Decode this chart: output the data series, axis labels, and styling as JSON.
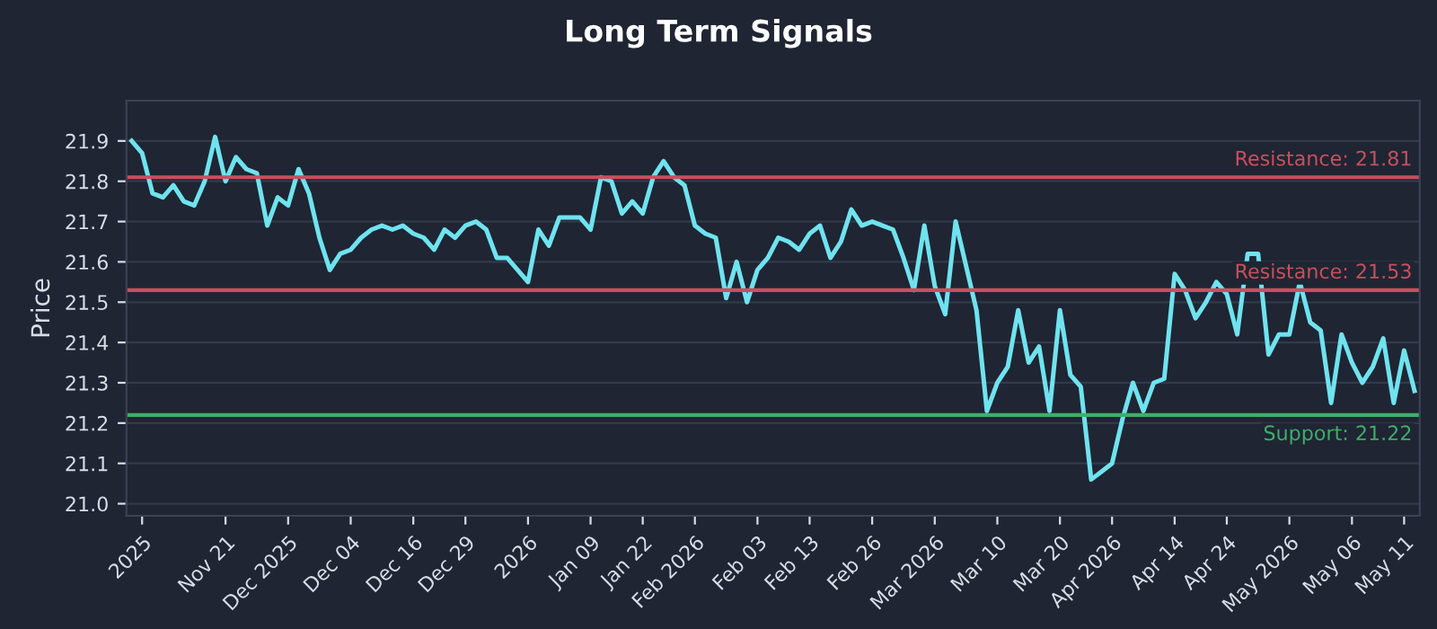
{
  "chart_data": {
    "type": "line",
    "title": "Long Term Signals",
    "ylabel": "Price",
    "categories": [
      null,
      "2025",
      null,
      null,
      null,
      null,
      null,
      null,
      null,
      "Nov 21",
      null,
      null,
      null,
      null,
      null,
      "Dec 2025",
      null,
      null,
      null,
      null,
      null,
      "Dec 04",
      null,
      null,
      null,
      null,
      null,
      "Dec 16",
      null,
      null,
      null,
      null,
      "Dec 29",
      null,
      null,
      null,
      null,
      null,
      "2026",
      null,
      null,
      null,
      null,
      null,
      "Jan 09",
      null,
      null,
      null,
      null,
      "Jan 22",
      null,
      null,
      null,
      null,
      "Feb 2026",
      null,
      null,
      null,
      null,
      null,
      "Feb 03",
      null,
      null,
      null,
      null,
      "Feb 13",
      null,
      null,
      null,
      null,
      null,
      "Feb 26",
      null,
      null,
      null,
      null,
      null,
      "Mar 2026",
      null,
      null,
      null,
      null,
      null,
      "Mar 10",
      null,
      null,
      null,
      null,
      null,
      "Mar 20",
      null,
      null,
      null,
      null,
      "Apr 2026",
      null,
      null,
      null,
      null,
      null,
      "Apr 14",
      null,
      null,
      null,
      null,
      "Apr 24",
      null,
      null,
      null,
      null,
      null,
      "May 2026",
      null,
      null,
      null,
      null,
      null,
      "May 06",
      null,
      null,
      null,
      null,
      "May 11",
      null
    ],
    "series": [
      {
        "color": "#6fe3ef",
        "values": [
          21.9,
          21.87,
          21.77,
          21.76,
          21.79,
          21.75,
          21.74,
          21.8,
          21.91,
          21.8,
          21.86,
          21.83,
          21.82,
          21.69,
          21.76,
          21.74,
          21.83,
          21.77,
          21.66,
          21.58,
          21.62,
          21.63,
          21.66,
          21.68,
          21.69,
          21.68,
          21.69,
          21.67,
          21.66,
          21.63,
          21.68,
          21.66,
          21.69,
          21.7,
          21.68,
          21.61,
          21.61,
          21.58,
          21.55,
          21.68,
          21.64,
          21.71,
          21.71,
          21.71,
          21.68,
          21.81,
          21.8,
          21.72,
          21.75,
          21.72,
          21.81,
          21.85,
          21.81,
          21.79,
          21.69,
          21.67,
          21.66,
          21.51,
          21.6,
          21.5,
          21.58,
          21.61,
          21.66,
          21.65,
          21.63,
          21.67,
          21.69,
          21.61,
          21.65,
          21.73,
          21.69,
          21.7,
          21.69,
          21.68,
          21.61,
          21.53,
          21.69,
          21.54,
          21.47,
          21.7,
          21.59,
          21.48,
          21.23,
          21.3,
          21.34,
          21.48,
          21.35,
          21.39,
          21.23,
          21.48,
          21.32,
          21.29,
          21.06,
          21.08,
          21.1,
          21.21,
          21.3,
          21.23,
          21.3,
          21.31,
          21.57,
          21.53,
          21.46,
          21.5,
          21.55,
          21.52,
          21.42,
          21.62,
          21.62,
          21.37,
          21.42,
          21.42,
          21.55,
          21.45,
          21.43,
          21.25,
          21.42,
          21.35,
          21.3,
          21.34,
          21.41,
          21.25,
          21.38,
          21.28
        ]
      }
    ],
    "ylim": [
      20.97,
      22.0
    ],
    "yticks": [
      {
        "value": 21.0,
        "label": "21.0"
      },
      21.1,
      21.2,
      21.3,
      21.4,
      21.5,
      21.6,
      21.7,
      21.8,
      21.9
    ],
    "ref_lines": [
      {
        "axis": "y",
        "value": 21.81,
        "label": "Resistance: 21.81",
        "color": "#c8505c"
      },
      {
        "axis": "y",
        "value": 21.53,
        "label": "Resistance: 21.53",
        "color": "#c8505c"
      },
      {
        "axis": "y",
        "value": 21.22,
        "label": "Support: 21.22",
        "color": "#3fae6a"
      }
    ],
    "grid": "y",
    "legend": false
  }
}
